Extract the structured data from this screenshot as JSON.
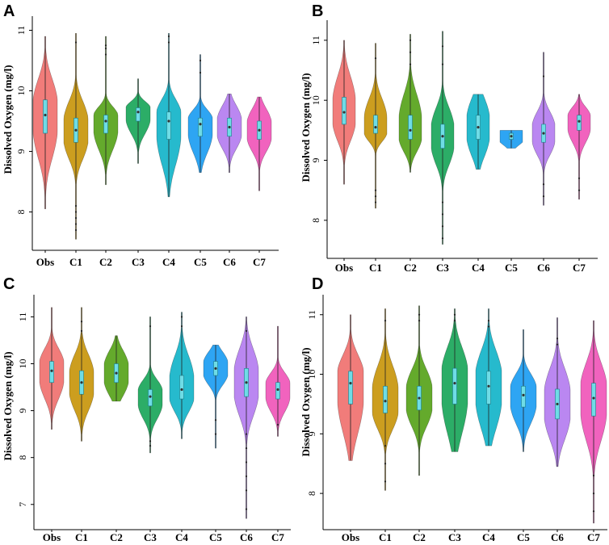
{
  "colors": [
    "#f0716f",
    "#c8960c",
    "#57a31a",
    "#1aa65a",
    "#13b4c9",
    "#1c9df2",
    "#b47df0",
    "#f056b8"
  ],
  "chart_data": [
    {
      "panel": "A",
      "type": "violin",
      "ylabel": "Dissolved Oxygen (mg/l)",
      "ylim": [
        7.5,
        11.1
      ],
      "yticks": [
        "8",
        "9",
        "10",
        "11"
      ],
      "categories": [
        "Obs",
        "C1",
        "C2",
        "C3",
        "C4",
        "C5",
        "C6",
        "C7"
      ],
      "median": [
        9.6,
        9.35,
        9.5,
        9.65,
        9.5,
        9.45,
        9.4,
        9.35
      ],
      "q1": [
        9.3,
        9.15,
        9.3,
        9.5,
        9.2,
        9.25,
        9.25,
        9.2
      ],
      "q3": [
        9.85,
        9.55,
        9.6,
        9.72,
        9.65,
        9.55,
        9.55,
        9.5
      ],
      "min": [
        8.05,
        7.55,
        8.45,
        8.8,
        8.25,
        8.65,
        8.65,
        8.35
      ],
      "max": [
        10.9,
        10.95,
        10.9,
        10.2,
        10.95,
        10.6,
        9.95,
        9.9
      ],
      "outliers": [
        [],
        [
          7.7,
          7.8,
          7.9,
          8.0,
          8.1,
          10.8
        ],
        [
          10.6,
          10.7,
          10.75
        ],
        [],
        [
          10.8,
          10.9
        ],
        [
          10.3,
          10.5
        ],
        [],
        []
      ]
    },
    {
      "panel": "B",
      "type": "violin",
      "ylabel": "Dissolved Oxygen (mg/l)",
      "ylim": [
        7.5,
        11.2
      ],
      "yticks": [
        "8",
        "9",
        "10",
        "11"
      ],
      "categories": [
        "Obs",
        "C1",
        "C2",
        "C3",
        "C4",
        "C5",
        "C6",
        "C7"
      ],
      "median": [
        9.8,
        9.55,
        9.5,
        9.4,
        9.55,
        9.4,
        9.45,
        9.65
      ],
      "q1": [
        9.6,
        9.45,
        9.35,
        9.2,
        9.35,
        9.35,
        9.3,
        9.5
      ],
      "q3": [
        10.05,
        9.75,
        9.75,
        9.6,
        9.75,
        9.45,
        9.6,
        9.75
      ],
      "min": [
        8.6,
        8.2,
        8.8,
        7.6,
        8.85,
        9.2,
        8.25,
        8.35
      ],
      "max": [
        11.0,
        10.95,
        11.1,
        11.15,
        10.1,
        9.5,
        10.8,
        10.1
      ],
      "outliers": [
        [],
        [
          8.3,
          8.4,
          8.5,
          10.7
        ],
        [
          10.6,
          10.8,
          11.0
        ],
        [
          7.7,
          7.9,
          8.1,
          8.3,
          10.6,
          10.9
        ],
        [],
        [],
        [
          8.4,
          8.6,
          10.4
        ],
        [
          8.5,
          8.7
        ]
      ]
    },
    {
      "panel": "C",
      "type": "violin",
      "ylabel": "Dissolved Oxygen (mg/l)",
      "ylim": [
        6.6,
        11.3
      ],
      "yticks": [
        "7",
        "8",
        "9",
        "10",
        "11"
      ],
      "categories": [
        "Obs",
        "C1",
        "C2",
        "C3",
        "C4",
        "C5",
        "C6",
        "C7"
      ],
      "median": [
        9.85,
        9.6,
        9.8,
        9.3,
        9.45,
        9.9,
        9.6,
        9.45
      ],
      "q1": [
        9.6,
        9.35,
        9.6,
        9.1,
        9.25,
        9.75,
        9.3,
        9.25
      ],
      "q3": [
        10.05,
        9.85,
        10.0,
        9.45,
        9.75,
        10.05,
        9.9,
        9.6
      ],
      "min": [
        8.6,
        8.35,
        9.2,
        8.1,
        8.4,
        8.2,
        6.7,
        8.45
      ],
      "max": [
        11.2,
        11.2,
        10.6,
        11.0,
        11.1,
        10.4,
        11.0,
        10.8
      ],
      "outliers": [
        [],
        [
          10.7,
          10.9
        ],
        [],
        [
          8.25,
          8.35,
          10.8
        ],
        [
          10.8,
          11.0
        ],
        [
          8.5,
          8.8
        ],
        [
          6.9,
          7.3,
          7.6,
          7.9,
          8.2,
          8.5,
          10.7
        ],
        [
          8.7
        ]
      ]
    },
    {
      "panel": "D",
      "type": "violin",
      "ylabel": "Dissolved Oxygen (mg/l)",
      "ylim": [
        7.5,
        11.2
      ],
      "yticks": [
        "8",
        "9",
        "10",
        "11"
      ],
      "categories": [
        "Obs",
        "C1",
        "C2",
        "C3",
        "C4",
        "C5",
        "C6",
        "C7"
      ],
      "median": [
        9.85,
        9.55,
        9.6,
        9.85,
        9.8,
        9.65,
        9.5,
        9.6
      ],
      "q1": [
        9.5,
        9.35,
        9.4,
        9.5,
        9.5,
        9.45,
        9.25,
        9.3
      ],
      "q3": [
        10.05,
        9.8,
        9.8,
        10.1,
        10.05,
        9.8,
        9.75,
        9.85
      ],
      "min": [
        8.55,
        8.05,
        8.3,
        8.7,
        8.8,
        8.7,
        8.45,
        7.5
      ],
      "max": [
        11.0,
        11.1,
        11.15,
        11.1,
        11.1,
        10.75,
        10.95,
        10.9
      ],
      "outliers": [
        [],
        [
          8.2,
          8.5,
          8.8,
          10.9
        ],
        [
          10.9,
          11.0
        ],
        [
          10.9,
          11.0
        ],
        [
          10.8,
          10.9
        ],
        [],
        [
          10.5,
          10.6
        ],
        [
          7.7,
          8.0,
          8.3
        ]
      ]
    }
  ]
}
